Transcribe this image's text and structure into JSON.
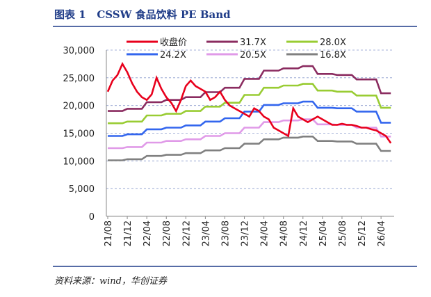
{
  "chart_data": {
    "type": "line",
    "title": "图表 1   CSSW 食品饮料 PE Band",
    "source": "资料来源：wind，华创证券",
    "categories": [
      "21/08",
      null,
      null,
      null,
      "21/12",
      null,
      null,
      null,
      "22/04",
      null,
      null,
      null,
      "22/08",
      null,
      null,
      null,
      "22/12",
      null,
      null,
      null,
      "23/04",
      null,
      null,
      null,
      "23/08",
      null,
      null,
      null,
      "23/12",
      null,
      null,
      null,
      "24/04",
      null,
      null,
      null,
      "24/08",
      null,
      null,
      null,
      "24/12",
      null,
      null,
      null,
      "25/04",
      null,
      null,
      null,
      "25/08",
      null,
      null,
      null,
      "25/12",
      null,
      null,
      null,
      "26/04",
      null,
      null
    ],
    "ylim": [
      0,
      30000
    ],
    "yticks": [
      0,
      {
        "value": 5000,
        "label": "5,000"
      },
      {
        "value": 10000,
        "label": "10,000"
      },
      {
        "value": 15000,
        "label": "15,000"
      },
      {
        "value": 20000,
        "label": "20,000"
      },
      {
        "value": 25000,
        "label": "25,000"
      },
      {
        "value": 30000,
        "label": "30,000"
      }
    ],
    "grid": true,
    "legend": "top",
    "series": [
      {
        "name": "收盘价",
        "color": "#e8001c",
        "values": [
          22500,
          24500,
          25500,
          27500,
          26000,
          24000,
          22500,
          21500,
          21000,
          22000,
          25000,
          23000,
          21500,
          20500,
          19000,
          21000,
          23500,
          24500,
          23500,
          23000,
          22500,
          21000,
          21500,
          22500,
          21000,
          20000,
          19500,
          19000,
          18500,
          18000,
          19500,
          19000,
          18000,
          17500,
          16000,
          15500,
          15000,
          14500,
          19500,
          18000,
          17500,
          17000,
          17500,
          18000,
          17500,
          17000,
          16500,
          16500,
          16700,
          16500,
          16500,
          16300,
          16000,
          16000,
          15700,
          15500,
          15000,
          14500,
          13200
        ]
      },
      {
        "name": "31.7X",
        "color": "#8b2c60",
        "values": [
          19000,
          19000,
          19000,
          19000,
          19400,
          19400,
          19400,
          19400,
          20600,
          20600,
          20600,
          20600,
          21000,
          21000,
          21000,
          21000,
          21500,
          21500,
          21500,
          21500,
          22400,
          22400,
          22400,
          22400,
          23200,
          23200,
          23200,
          23200,
          24800,
          24800,
          24800,
          24800,
          26300,
          26300,
          26300,
          26300,
          26700,
          26700,
          26700,
          26700,
          27100,
          27100,
          27100,
          25700,
          25700,
          25700,
          25700,
          25500,
          25500,
          25500,
          25500,
          24700,
          24700,
          24700,
          24700,
          24700,
          22200,
          22200,
          22200
        ]
      },
      {
        "name": "28.0X",
        "color": "#99cc33",
        "values": [
          16800,
          16800,
          16800,
          16800,
          17100,
          17100,
          17100,
          17100,
          18200,
          18200,
          18200,
          18200,
          18500,
          18500,
          18500,
          18500,
          19000,
          19000,
          19000,
          19000,
          19800,
          19800,
          19800,
          19800,
          20500,
          20500,
          20500,
          20500,
          21900,
          21900,
          21900,
          21900,
          23200,
          23200,
          23200,
          23200,
          23600,
          23600,
          23600,
          23600,
          23900,
          23900,
          23900,
          22700,
          22700,
          22700,
          22700,
          22500,
          22500,
          22500,
          22500,
          21800,
          21800,
          21800,
          21800,
          21800,
          19600,
          19600,
          19600
        ]
      },
      {
        "name": "24.2X",
        "color": "#3366ee",
        "values": [
          14500,
          14500,
          14500,
          14500,
          14800,
          14800,
          14800,
          14800,
          15700,
          15700,
          15700,
          15700,
          16000,
          16000,
          16000,
          16000,
          16400,
          16400,
          16400,
          16400,
          17100,
          17100,
          17100,
          17100,
          17700,
          17700,
          17700,
          17700,
          18900,
          18900,
          18900,
          18900,
          20100,
          20100,
          20100,
          20100,
          20400,
          20400,
          20400,
          20400,
          20700,
          20700,
          20700,
          19600,
          19600,
          19600,
          19600,
          19500,
          19500,
          19500,
          19500,
          18900,
          18900,
          18900,
          18900,
          18900,
          16900,
          16900,
          16900
        ]
      },
      {
        "name": "20.5X",
        "color": "#e09ae8",
        "values": [
          12300,
          12300,
          12300,
          12300,
          12500,
          12500,
          12500,
          12500,
          13300,
          13300,
          13300,
          13300,
          13600,
          13600,
          13600,
          13600,
          13900,
          13900,
          13900,
          13900,
          14500,
          14500,
          14500,
          14500,
          15000,
          15000,
          15000,
          15000,
          16000,
          16000,
          16000,
          16000,
          17000,
          17000,
          17000,
          17000,
          17300,
          17300,
          17300,
          17300,
          17500,
          17500,
          17500,
          16600,
          16600,
          16600,
          16600,
          16500,
          16500,
          16500,
          16500,
          16000,
          16000,
          16000,
          16000,
          16000,
          14400,
          14400,
          14400
        ]
      },
      {
        "name": "16.8X",
        "color": "#808080",
        "values": [
          10100,
          10100,
          10100,
          10100,
          10300,
          10300,
          10300,
          10300,
          10900,
          10900,
          10900,
          10900,
          11100,
          11100,
          11100,
          11100,
          11400,
          11400,
          11400,
          11400,
          11900,
          11900,
          11900,
          11900,
          12300,
          12300,
          12300,
          12300,
          13100,
          13100,
          13100,
          13100,
          13900,
          13900,
          13900,
          13900,
          14200,
          14200,
          14200,
          14200,
          14400,
          14400,
          14400,
          13600,
          13600,
          13600,
          13600,
          13500,
          13500,
          13500,
          13500,
          13100,
          13100,
          13100,
          13100,
          13100,
          11800,
          11800,
          11800
        ]
      }
    ]
  }
}
